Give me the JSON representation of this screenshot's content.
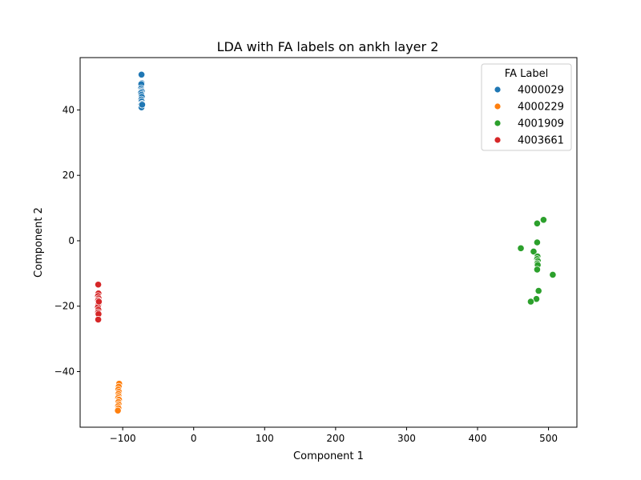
{
  "chart_data": {
    "type": "scatter",
    "title": "LDA with FA labels on ankh layer 2",
    "xlabel": "Component 1",
    "ylabel": "Component 2",
    "xlim": [
      -160,
      540
    ],
    "ylim": [
      -57,
      56
    ],
    "xticks": [
      -100,
      0,
      100,
      200,
      300,
      400,
      500
    ],
    "yticks": [
      -40,
      -20,
      0,
      20,
      40
    ],
    "legend": {
      "title": "FA Label",
      "placement": "top-right"
    },
    "grid": false,
    "series": [
      {
        "name": "4000029",
        "color": "#1f77b4",
        "points": [
          [
            -73.5,
            50.8
          ],
          [
            -73.2,
            48.2
          ],
          [
            -73.8,
            47.9
          ],
          [
            -74.0,
            46.6
          ],
          [
            -73.4,
            46.0
          ],
          [
            -73.0,
            45.6
          ],
          [
            -74.2,
            45.2
          ],
          [
            -73.6,
            44.6
          ],
          [
            -73.1,
            44.0
          ],
          [
            -73.7,
            43.2
          ],
          [
            -73.3,
            42.6
          ],
          [
            -72.8,
            41.9
          ],
          [
            -73.9,
            41.5
          ],
          [
            -73.2,
            41.1
          ],
          [
            -73.5,
            40.8
          ],
          [
            -72.6,
            41.6
          ]
        ]
      },
      {
        "name": "4000229",
        "color": "#ff7f0e",
        "points": [
          [
            -105.0,
            -43.7
          ],
          [
            -105.6,
            -44.6
          ],
          [
            -106.2,
            -45.5
          ],
          [
            -105.4,
            -46.2
          ],
          [
            -106.0,
            -46.8
          ],
          [
            -105.8,
            -47.5
          ],
          [
            -106.4,
            -48.1
          ],
          [
            -105.2,
            -48.6
          ],
          [
            -106.1,
            -49.3
          ],
          [
            -105.7,
            -50.0
          ],
          [
            -106.5,
            -50.6
          ],
          [
            -106.0,
            -51.2
          ],
          [
            -106.8,
            -51.9
          ]
        ]
      },
      {
        "name": "4001909",
        "color": "#2ca02c",
        "points": [
          [
            493.0,
            6.4
          ],
          [
            484.0,
            5.3
          ],
          [
            484.0,
            -0.5
          ],
          [
            461.0,
            -2.3
          ],
          [
            479.0,
            -3.3
          ],
          [
            484.5,
            -4.8
          ],
          [
            484.0,
            -5.6
          ],
          [
            485.0,
            -6.2
          ],
          [
            484.2,
            -6.9
          ],
          [
            484.8,
            -7.4
          ],
          [
            484.0,
            -8.8
          ],
          [
            506.0,
            -10.4
          ],
          [
            486.0,
            -15.3
          ],
          [
            483.0,
            -17.8
          ],
          [
            475.0,
            -18.6
          ]
        ]
      },
      {
        "name": "4003661",
        "color": "#d62728",
        "points": [
          [
            -134.5,
            -13.4
          ],
          [
            -134.2,
            -16.1
          ],
          [
            -134.8,
            -16.9
          ],
          [
            -134.0,
            -17.6
          ],
          [
            -134.6,
            -18.2
          ],
          [
            -133.8,
            -18.8
          ],
          [
            -134.4,
            -19.5
          ],
          [
            -134.9,
            -20.3
          ],
          [
            -134.3,
            -21.1
          ],
          [
            -134.7,
            -21.9
          ],
          [
            -134.1,
            -22.4
          ],
          [
            -134.5,
            -24.1
          ],
          [
            -133.6,
            -18.6
          ]
        ]
      }
    ]
  }
}
